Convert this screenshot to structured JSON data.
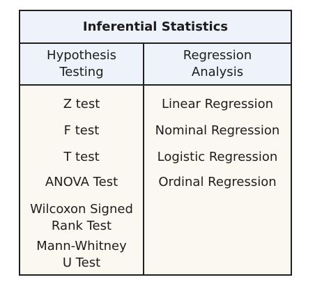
{
  "table": {
    "title": "Inferential Statistics",
    "columns": [
      {
        "header": "Hypothesis\nTesting",
        "items": [
          "Z test",
          "F test",
          "T test",
          "ANOVA Test",
          "Wilcoxon Signed\nRank Test",
          "Mann-Whitney\nU Test"
        ]
      },
      {
        "header": "Regression\nAnalysis",
        "items": [
          "Linear Regression",
          "Nominal Regression",
          "Logistic Regression",
          "Ordinal Regression"
        ]
      }
    ]
  }
}
